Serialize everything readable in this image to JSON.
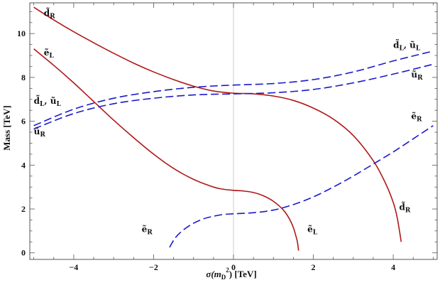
{
  "chart_data": {
    "type": "line",
    "title": "",
    "xlabel": "σ(m_D^2) [TeV]",
    "xlabel_main": "σ(m",
    "xlabel_sub": "D",
    "xlabel_sup": "2",
    "xlabel_tail": ") [TeV]",
    "ylabel": "Mass [TeV]",
    "xlim": [
      -5.1,
      5.1
    ],
    "ylim": [
      -0.3,
      11.4
    ],
    "xticks": [
      -4,
      -2,
      0,
      2,
      4
    ],
    "xtick_labels": [
      "−4",
      "−2",
      "0",
      "2",
      "4"
    ],
    "yticks": [
      0,
      2,
      4,
      6,
      8,
      10
    ],
    "ytick_labels": [
      "0",
      "2",
      "4",
      "6",
      "8",
      "10"
    ],
    "colors": {
      "red": "#b01818",
      "blue": "#1a1acc",
      "frame": "#555555",
      "zero_line": "#cccccc"
    },
    "series": [
      {
        "name": "d̃_R",
        "style": "solid-red",
        "x": [
          -5,
          -4.5,
          -4,
          -3.5,
          -3,
          -2.5,
          -2,
          -1.5,
          -1,
          -0.5,
          0,
          0.5,
          1,
          1.5,
          2,
          2.5,
          3,
          3.5,
          3.8,
          4.0,
          4.1,
          4.2
        ],
        "y": [
          11.2,
          10.62,
          10.08,
          9.58,
          9.1,
          8.65,
          8.25,
          7.9,
          7.6,
          7.38,
          7.28,
          7.25,
          7.15,
          6.95,
          6.6,
          6.1,
          5.35,
          4.2,
          3.2,
          2.3,
          1.6,
          0.5
        ]
      },
      {
        "name": "ẽ_L",
        "style": "solid-red",
        "x": [
          -5,
          -4.5,
          -4,
          -3.5,
          -3,
          -2.5,
          -2,
          -1.5,
          -1,
          -0.5,
          -0.25,
          0,
          0.25,
          0.5,
          0.75,
          1,
          1.25,
          1.4,
          1.5,
          1.55,
          1.6,
          1.63
        ],
        "y": [
          9.3,
          8.55,
          7.75,
          6.9,
          6.05,
          5.25,
          4.5,
          3.85,
          3.35,
          3.0,
          2.9,
          2.85,
          2.82,
          2.75,
          2.6,
          2.35,
          1.95,
          1.55,
          1.15,
          0.85,
          0.5,
          0.1
        ]
      },
      {
        "name": "d̃_L, ũ_L",
        "style": "dashed-blue",
        "x": [
          -5,
          -4,
          -3,
          -2,
          -1,
          0,
          1,
          2,
          3,
          4,
          5
        ],
        "y": [
          5.8,
          6.55,
          7.05,
          7.35,
          7.55,
          7.65,
          7.72,
          7.9,
          8.25,
          8.75,
          9.2
        ]
      },
      {
        "name": "ũ_R",
        "style": "dashed-blue",
        "x": [
          -5,
          -4,
          -3,
          -2,
          -1,
          0,
          1,
          2,
          3,
          4,
          5
        ],
        "y": [
          5.65,
          6.35,
          6.8,
          7.05,
          7.2,
          7.25,
          7.3,
          7.45,
          7.75,
          8.15,
          8.6
        ]
      },
      {
        "name": "ẽ_R",
        "style": "dashed-blue",
        "x": [
          -1.6,
          -1.45,
          -1.25,
          -1,
          -0.75,
          -0.5,
          -0.25,
          0,
          0.5,
          1,
          1.5,
          2,
          2.5,
          3,
          3.5,
          4,
          4.5,
          5
        ],
        "y": [
          0.25,
          0.7,
          1.05,
          1.35,
          1.55,
          1.67,
          1.75,
          1.78,
          1.83,
          1.95,
          2.2,
          2.55,
          3.0,
          3.5,
          4.05,
          4.6,
          5.2,
          5.8
        ]
      }
    ],
    "labels": [
      {
        "id": "dR-top",
        "base": "d̃",
        "sub": "R",
        "x": -4.75,
        "y": 10.8
      },
      {
        "id": "eL-left",
        "base": "ẽ",
        "sub": "L",
        "x": -4.75,
        "y": 9.0
      },
      {
        "id": "dLuL-left",
        "base": "d̃",
        "sub": "L",
        "mid": ", ũ",
        "sub2": "L",
        "x": -5.0,
        "y": 6.8
      },
      {
        "id": "uR-left",
        "base": "ũ",
        "sub": "R",
        "x": -5.0,
        "y": 5.4
      },
      {
        "id": "eR-left",
        "base": "ẽ",
        "sub": "R",
        "x": -2.3,
        "y": 0.95
      },
      {
        "id": "eL-right",
        "base": "ẽ",
        "sub": "L",
        "x": 1.85,
        "y": 0.95
      },
      {
        "id": "dR-right",
        "base": "d̃",
        "sub": "R",
        "x": 4.15,
        "y": 1.95
      },
      {
        "id": "dLuL-right",
        "base": "d̃",
        "sub": "L",
        "mid": ", ũ",
        "sub2": "L",
        "x": 4.0,
        "y": 9.35
      },
      {
        "id": "uR-right",
        "base": "ũ",
        "sub": "R",
        "x": 4.45,
        "y": 8.0
      },
      {
        "id": "eR-right",
        "base": "ẽ",
        "sub": "R",
        "x": 4.45,
        "y": 6.1
      }
    ]
  }
}
